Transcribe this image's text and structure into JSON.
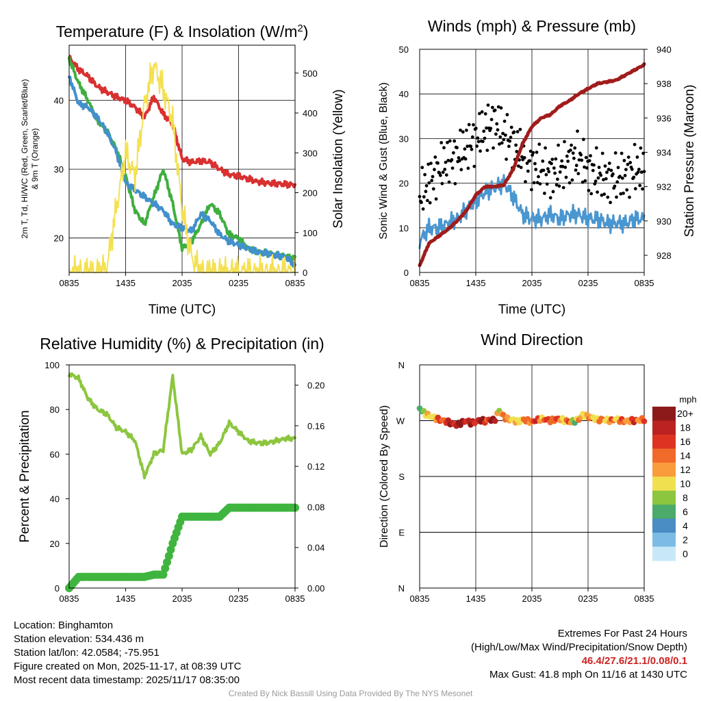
{
  "time_ticks": [
    "0835",
    "1435",
    "2035",
    "0235",
    "0835"
  ],
  "chart_data": [
    {
      "id": "temp",
      "type": "line",
      "title": "Temperature (F) & Insolation (W/m²)",
      "title_main": "Temperature (F) & Insolation (W/m",
      "title_sup": "2",
      "title_end": ")",
      "xlabel": "Time (UTC)",
      "ylabel_lines": [
        "2m T, Td, HI/WC (Red, Green, Scarlet/Blue)",
        "& 9m T (Orange)"
      ],
      "y2label": "Solar Insolation (Yellow)",
      "ylim": [
        15,
        48
      ],
      "yticks": [
        20,
        30,
        40
      ],
      "y2lim": [
        0,
        570
      ],
      "y2ticks": [
        0,
        100,
        200,
        300,
        400,
        500
      ],
      "x": [
        0,
        1,
        2,
        3,
        4,
        5,
        6,
        7,
        8,
        9,
        10,
        11,
        12,
        13,
        14,
        15,
        16,
        17,
        18,
        19,
        20,
        21,
        22,
        23,
        24
      ],
      "series": [
        {
          "name": "2m T",
          "color": "#d93030",
          "axis": "left",
          "values": [
            46.2,
            44.5,
            43.5,
            42.0,
            41.2,
            40.5,
            40.0,
            39.0,
            37.5,
            40.5,
            38.0,
            36.5,
            31.5,
            31.0,
            31.2,
            31.0,
            30.0,
            29.2,
            29.0,
            28.6,
            28.2,
            28.0,
            27.9,
            27.8,
            27.7
          ]
        },
        {
          "name": "Td",
          "color": "#3fae3f",
          "axis": "left",
          "values": [
            46.0,
            42.5,
            40.0,
            37.0,
            35.5,
            33.0,
            29.0,
            24.0,
            22.0,
            26.0,
            30.0,
            25.0,
            18.5,
            19.5,
            22.0,
            25.0,
            23.5,
            20.5,
            20.0,
            18.5,
            18.0,
            17.8,
            17.5,
            17.3,
            17.0
          ]
        },
        {
          "name": "HI/WC",
          "color": "#4290cc",
          "axis": "left",
          "values": [
            43.5,
            39.5,
            39.0,
            37.5,
            35.5,
            32.5,
            28.0,
            27.0,
            26.0,
            25.0,
            24.0,
            22.0,
            21.5,
            21.0,
            23.5,
            22.5,
            20.5,
            19.5,
            19.0,
            18.5,
            18.0,
            17.8,
            17.5,
            17.3,
            16.0
          ]
        },
        {
          "name": "Solar Insolation",
          "color": "#f4e050",
          "axis": "right",
          "values": [
            0,
            0,
            0,
            0,
            10,
            160,
            300,
            240,
            420,
            520,
            460,
            380,
            160,
            40,
            0,
            0,
            0,
            0,
            0,
            0,
            0,
            0,
            0,
            0,
            0
          ]
        }
      ]
    },
    {
      "id": "wind",
      "type": "line",
      "title": "Winds (mph) & Pressure (mb)",
      "xlabel": "Time (UTC)",
      "ylabel": "Sonic Wind & Gust (Blue, Black)",
      "y2label": "Station Pressure (Maroon)",
      "ylim": [
        0,
        50
      ],
      "yticks": [
        0,
        10,
        20,
        30,
        40,
        50
      ],
      "y2lim": [
        927,
        940
      ],
      "y2ticks": [
        928,
        930,
        932,
        934,
        936,
        938,
        940
      ],
      "x": [
        0,
        1,
        2,
        3,
        4,
        5,
        6,
        7,
        8,
        9,
        10,
        11,
        12,
        13,
        14,
        15,
        16,
        17,
        18,
        19,
        20,
        21,
        22,
        23,
        24
      ],
      "series": [
        {
          "name": "Sonic Wind",
          "color": "#4a96d0",
          "axis": "left",
          "kind": "line",
          "values": [
            7,
            10,
            10,
            11,
            12,
            14,
            16,
            18,
            19,
            20,
            17,
            13,
            12,
            12,
            13,
            12,
            13,
            13,
            12,
            12,
            11,
            11,
            11,
            12,
            12
          ]
        },
        {
          "name": "Gust",
          "color": "#000000",
          "axis": "left",
          "kind": "dots",
          "values": [
            17,
            20,
            23,
            25,
            26,
            28,
            30,
            32,
            34,
            31,
            29,
            26,
            24,
            23,
            22,
            23,
            25,
            26,
            23,
            22,
            21,
            21,
            22,
            23,
            23
          ]
        },
        {
          "name": "Station Pressure",
          "color": "#a01c1c",
          "axis": "right",
          "kind": "line",
          "values": [
            927.4,
            928.7,
            929.1,
            929.5,
            930.0,
            930.6,
            931.5,
            932.0,
            932.0,
            932.1,
            933.0,
            934.5,
            935.5,
            936.0,
            936.2,
            936.7,
            937.0,
            937.4,
            937.7,
            938.0,
            938.1,
            938.2,
            938.5,
            938.8,
            939.1
          ]
        }
      ]
    },
    {
      "id": "rh",
      "type": "line",
      "title": "Relative Humidity (%) & Precipitation (in)",
      "ylabel": "Percent & Precipitation",
      "ylim": [
        0,
        100
      ],
      "yticks": [
        0,
        20,
        40,
        60,
        80,
        100
      ],
      "y2lim": [
        0,
        0.22
      ],
      "y2ticks": [
        "0.00",
        "0.04",
        "0.08",
        "0.12",
        "0.16",
        "0.20"
      ],
      "x": [
        0,
        1,
        2,
        3,
        4,
        5,
        6,
        7,
        8,
        9,
        10,
        11,
        12,
        13,
        14,
        15,
        16,
        17,
        18,
        19,
        20,
        21,
        22,
        23,
        24
      ],
      "series": [
        {
          "name": "Relative Humidity",
          "color": "#8cc63f",
          "axis": "left",
          "kind": "line",
          "values": [
            96,
            94,
            85,
            80,
            78,
            72,
            70,
            66,
            50,
            60,
            62,
            95,
            60,
            62,
            68,
            60,
            65,
            74,
            70,
            66,
            65,
            65,
            66,
            67,
            67
          ]
        },
        {
          "name": "Precipitation",
          "color": "#3fb53f",
          "axis": "left",
          "kind": "thick",
          "values": [
            0,
            5,
            5,
            5,
            5,
            5,
            5,
            5,
            5,
            6,
            6,
            20,
            32,
            32,
            32,
            32,
            32,
            36,
            36,
            36,
            36,
            36,
            36,
            36,
            36
          ]
        }
      ]
    },
    {
      "id": "wdir",
      "type": "scatter",
      "title": "Wind Direction",
      "ylabel": "Direction (Colored By Speed)",
      "yticks": [
        "N",
        "W",
        "S",
        "E",
        "N"
      ],
      "ylim": [
        0,
        360
      ],
      "colorbar_title": "mph",
      "colorbar_labels": [
        "20+",
        "18",
        "16",
        "14",
        "12",
        "10",
        "8",
        "6",
        "4",
        "2",
        "0"
      ],
      "colorbar_colors": [
        "#8c1a1a",
        "#bb2222",
        "#dd3322",
        "#f06a2a",
        "#fa9c3c",
        "#f0e050",
        "#8cc63f",
        "#4caa6a",
        "#4a8cc4",
        "#7cbce4",
        "#c8e8f8"
      ],
      "x": [
        0,
        0.5,
        1,
        1.5,
        2,
        2.5,
        3,
        3.5,
        4,
        4.5,
        5,
        5.5,
        6,
        6.5,
        7,
        7.5,
        8,
        8.5,
        9,
        9.5,
        10,
        10.5,
        11,
        11.5,
        12,
        12.5,
        13,
        13.5,
        14,
        14.5,
        15,
        15.5,
        16,
        16.5,
        17,
        17.5,
        18,
        18.5,
        19,
        19.5,
        20,
        20.5,
        21,
        21.5,
        22,
        22.5,
        23,
        23.5,
        24
      ],
      "directions": [
        290,
        282,
        278,
        275,
        272,
        270,
        268,
        265,
        263,
        267,
        270,
        266,
        268,
        271,
        269,
        272,
        270,
        287,
        276,
        272,
        271,
        268,
        272,
        270,
        268,
        271,
        273,
        272,
        270,
        272,
        273,
        270,
        268,
        269,
        272,
        280,
        276,
        275,
        271,
        272,
        271,
        270,
        273,
        270,
        269,
        270,
        270,
        271,
        272
      ],
      "speeds": [
        6,
        9,
        10,
        11,
        14,
        15,
        17,
        18,
        19,
        20,
        18,
        17,
        18,
        19,
        16,
        18,
        19,
        10,
        12,
        14,
        9,
        11,
        12,
        13,
        15,
        16,
        12,
        14,
        15,
        16,
        13,
        12,
        14,
        7,
        12,
        11,
        13,
        10,
        12,
        13,
        11,
        14,
        10,
        15,
        12,
        14,
        16,
        13,
        15
      ]
    }
  ],
  "footer": {
    "location": "Location: Binghamton",
    "elevation": "Station elevation: 534.436 m",
    "latlon": "Station lat/lon: 42.0584; -75.951",
    "created": "Figure created on Mon, 2025-11-17, at 08:39 UTC",
    "recent": "Most recent data timestamp: 2025/11/17 08:35:00",
    "extremes_title": "Extremes For Past 24 Hours",
    "extremes_legend": "(High/Low/Max Wind/Precipitation/Snow Depth)",
    "extremes_values": "46.4/27.6/21.1/0.08/0.1",
    "max_gust": "Max Gust: 41.8 mph On 11/16 at 1430 UTC",
    "credit": "Created By Nick Bassill Using Data Provided By The NYS Mesonet"
  }
}
